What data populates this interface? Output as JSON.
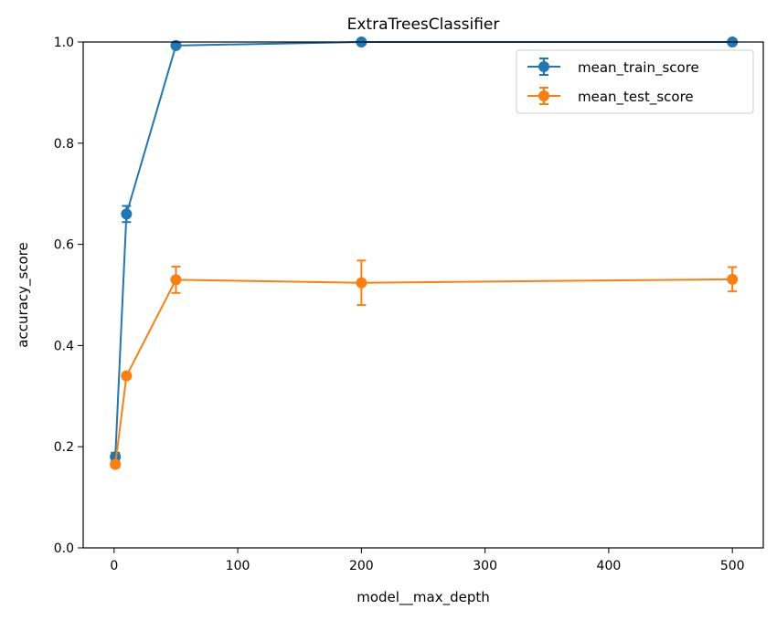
{
  "chart_data": {
    "type": "line",
    "title": "ExtraTreesClassifier",
    "xlabel": "model__max_depth",
    "ylabel": "accuracy_score",
    "xlim": [
      -25,
      525
    ],
    "ylim": [
      0.0,
      1.0
    ],
    "xticks": [
      0,
      100,
      200,
      300,
      400,
      500
    ],
    "yticks": [
      0.0,
      0.2,
      0.4,
      0.6,
      0.8,
      1.0
    ],
    "xtick_labels": [
      "0",
      "100",
      "200",
      "300",
      "400",
      "500"
    ],
    "ytick_labels": [
      "0.0",
      "0.2",
      "0.4",
      "0.6",
      "0.8",
      "1.0"
    ],
    "grid": false,
    "legend_position": "top-right",
    "x": [
      1,
      10,
      50,
      200,
      500
    ],
    "series": [
      {
        "name": "mean_train_score",
        "color": "#1f77b4",
        "values": [
          0.18,
          0.66,
          0.993,
          1.0,
          1.0
        ],
        "errors": [
          0.008,
          0.016,
          0.004,
          0.0,
          0.0
        ]
      },
      {
        "name": "mean_test_score",
        "color": "#ff7f0e",
        "values": [
          0.165,
          0.34,
          0.53,
          0.524,
          0.531
        ],
        "errors": [
          0.006,
          0.006,
          0.026,
          0.044,
          0.024
        ]
      }
    ]
  }
}
